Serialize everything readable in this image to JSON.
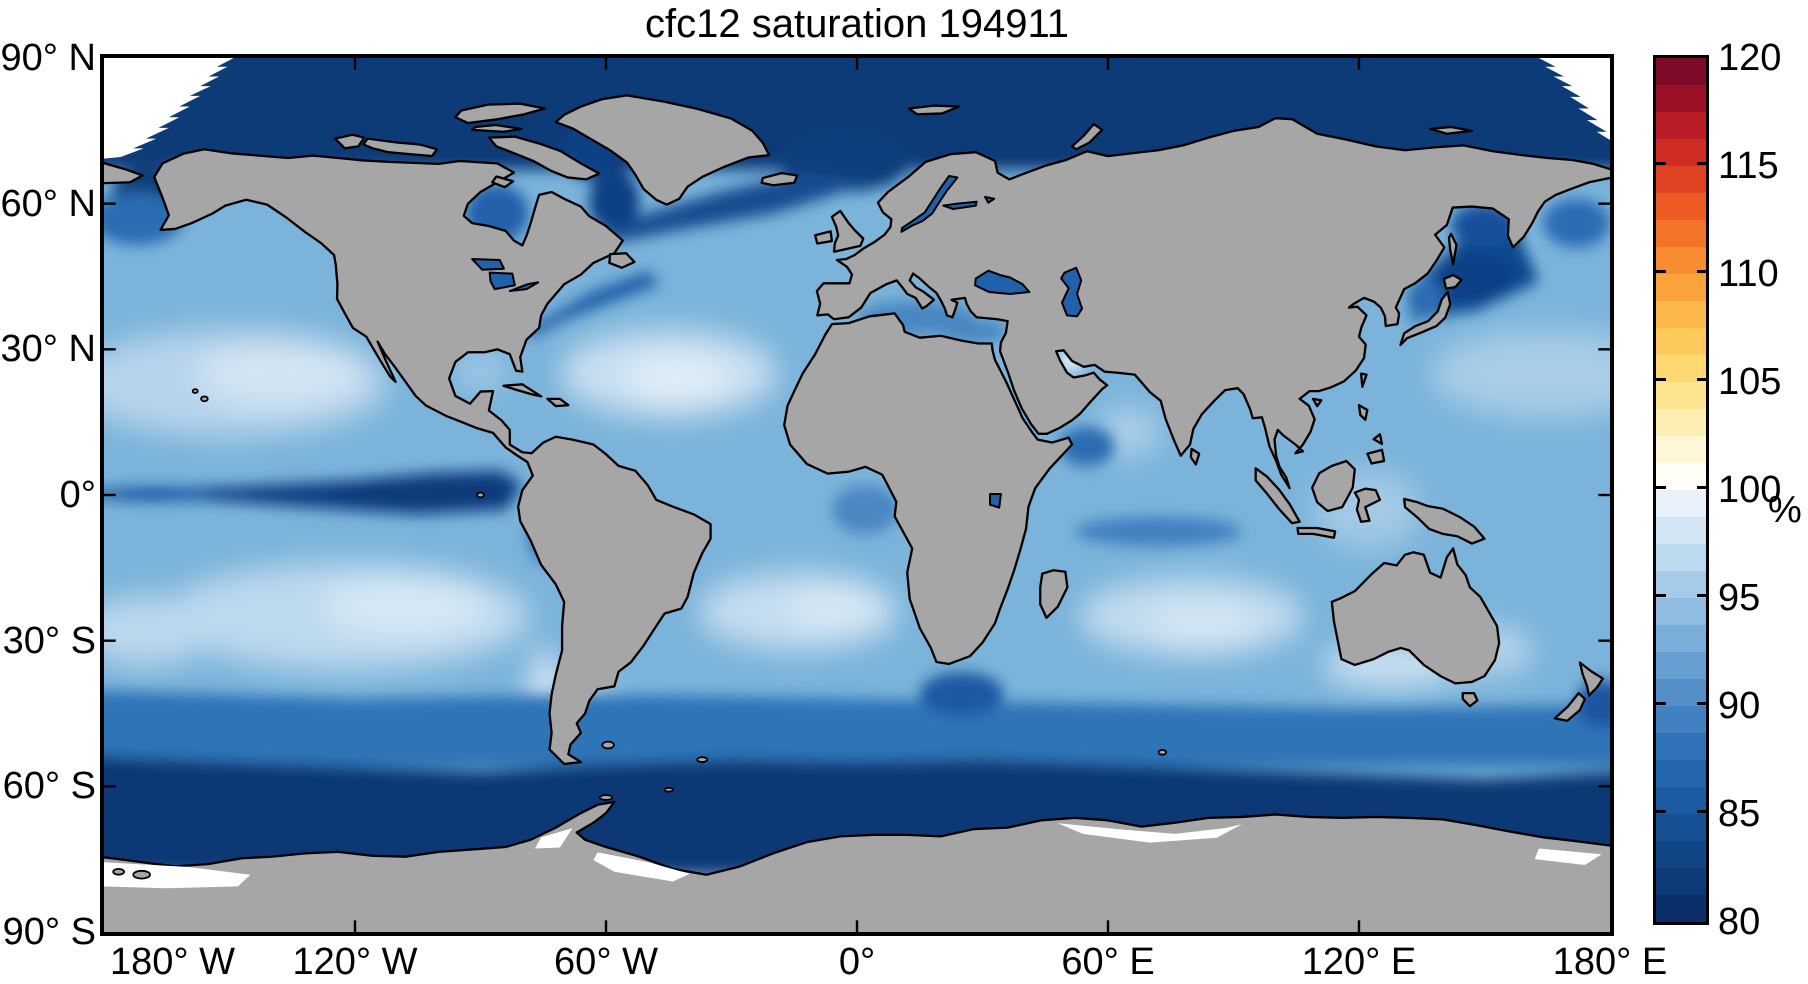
{
  "figure": {
    "title": "cfc12 saturation 194911",
    "background": "#ffffff"
  },
  "axes": {
    "lon_ticks": [
      "180° W",
      "120° W",
      "60° W",
      "0°",
      "60° E",
      "120° E",
      "180° E"
    ],
    "lat_ticks": [
      "90° N",
      "60° N",
      "30° N",
      "0°",
      "30° S",
      "60° S",
      "90° S"
    ]
  },
  "colorbar": {
    "unit": "%",
    "min": 80,
    "max": 120,
    "tick_labels": [
      "120",
      "115",
      "110",
      "105",
      "100",
      "95",
      "90",
      "85",
      "80"
    ],
    "segment_colors_bottom_to_top": [
      "#0b3069",
      "#0e3a77",
      "#114585",
      "#155093",
      "#1a5ba2",
      "#2366ae",
      "#3173b8",
      "#4281c1",
      "#548fc9",
      "#679dd1",
      "#7badd9",
      "#8fbce1",
      "#a5cbe9",
      "#bbd9ef",
      "#d2e5f4",
      "#e9f2fa",
      "#fffef8",
      "#fff7d8",
      "#feeeb3",
      "#fee491",
      "#fdd873",
      "#fdc95c",
      "#fcb84b",
      "#faa33c",
      "#f78c31",
      "#f37428",
      "#ec5b24",
      "#e04322",
      "#cf2d23",
      "#b81d26",
      "#9c1127",
      "#7d0a26"
    ]
  },
  "palette": {
    "land": "#a6a6a6",
    "coastline": "#000000",
    "frame": "#000000",
    "ocean_mid": "#7bb3da",
    "ocean_low": "#0d3a78",
    "ocean_high": "#ecf3fa",
    "no_data": "#ffffff"
  },
  "chart_data": {
    "type": "heatmap",
    "title": "cfc12 saturation 194911",
    "variable": "CFC-12 surface saturation",
    "unit": "%",
    "time_code_in_title": "194911",
    "x_axis": {
      "label": "longitude",
      "ticks": [
        "180° W",
        "120° W",
        "60° W",
        "0°",
        "60° E",
        "120° E",
        "180° E"
      ],
      "range_deg": [
        -180,
        180
      ]
    },
    "y_axis": {
      "label": "latitude",
      "ticks": [
        "90° N",
        "60° N",
        "30° N",
        "0°",
        "30° S",
        "60° S",
        "90° S"
      ],
      "range_deg": [
        -90,
        90
      ]
    },
    "colorbar": {
      "range_pct": [
        80,
        120
      ],
      "tick_step": 5,
      "segments": 32,
      "segment_step": 1.25,
      "style": "diverging blue-white-yellow-red",
      "legend_position": "right"
    },
    "land": "gray = land (no data)",
    "white_regions": "white = no data / out of range (Antarctic coastal zones, ice margins)",
    "grid": false,
    "notable_features": [
      {
        "region": "Arctic Ocean",
        "approx_value_pct": 81
      },
      {
        "region": "Southern Ocean band 55-70S",
        "approx_value_pct": 81
      },
      {
        "region": "Equatorial Pacific cold tongue",
        "approx_value_pct": 82
      },
      {
        "region": "Northwest Pacific / Sea of Okhotsk",
        "approx_value_pct": 84
      },
      {
        "region": "Subpolar North Atlantic, Labrador Sea, Baffin Bay",
        "approx_value_pct": 84
      },
      {
        "region": "Hudson Bay",
        "approx_value_pct": 86
      },
      {
        "region": "Mid-latitude open ocean",
        "approx_value_pct": 91
      },
      {
        "region": "Subtropical gyres (N/S Pacific, N/S Atlantic, S Indian)",
        "approx_value_pct": 96
      },
      {
        "region": "Patagonian shelf and scattered coastal spots",
        "approx_value_pct": 99
      },
      {
        "region": "Entire mapped ocean is at or below ~100% (blue half of scale only)",
        "approx_value_pct": null
      }
    ]
  }
}
